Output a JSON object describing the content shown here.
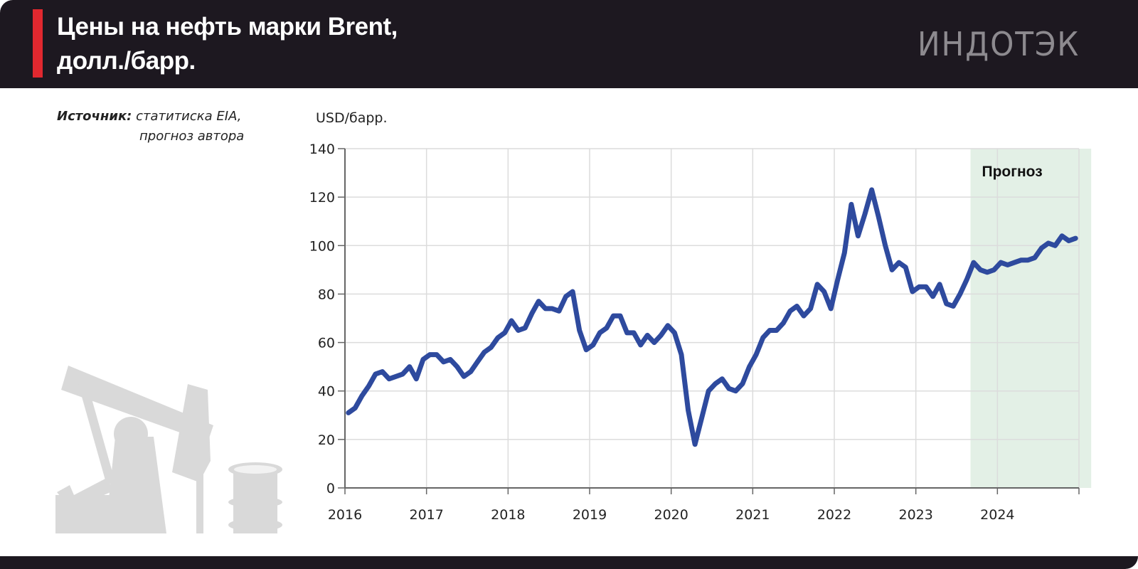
{
  "header": {
    "title_line1": "Цены на нефть марки Brent,",
    "title_line2": "долл./барр.",
    "logo_text": "ИНДОТЭК",
    "accent_color": "#e1282f",
    "background_color": "#1d1820"
  },
  "source": {
    "label": "Источник:",
    "line1": "статитиска EIA,",
    "line2": "прогноз автора"
  },
  "illustration": {
    "icons": [
      "oil-pump-icon",
      "oil-barrel-icon"
    ],
    "color": "#d9d9d9"
  },
  "chart_data": {
    "type": "line",
    "title": "Цены на нефть марки Brent, долл./барр.",
    "ylabel": "USD/барр.",
    "xlabel": "",
    "ylim": [
      0,
      140
    ],
    "xlim": [
      2016,
      2025
    ],
    "y_ticks": [
      0,
      20,
      40,
      60,
      80,
      100,
      120,
      140
    ],
    "x_ticks": [
      "2016",
      "2017",
      "2018",
      "2019",
      "2020",
      "2021",
      "2022",
      "2023",
      "2024"
    ],
    "grid": true,
    "line_color": "#2e4a9e",
    "forecast": {
      "label": "Прогноз",
      "start": 2023.67,
      "end": 2025.15,
      "color": "#e3f0e6"
    },
    "x_start_year": 2016,
    "x_step_months": 1,
    "series": [
      {
        "name": "Brent",
        "values": [
          31,
          33,
          38,
          42,
          47,
          48,
          45,
          46,
          47,
          50,
          45,
          53,
          55,
          55,
          52,
          53,
          50,
          46,
          48,
          52,
          56,
          58,
          62,
          64,
          69,
          65,
          66,
          72,
          77,
          74,
          74,
          73,
          79,
          81,
          65,
          57,
          59,
          64,
          66,
          71,
          71,
          64,
          64,
          59,
          63,
          60,
          63,
          67,
          64,
          55,
          32,
          18,
          29,
          40,
          43,
          45,
          41,
          40,
          43,
          50,
          55,
          62,
          65,
          65,
          68,
          73,
          75,
          71,
          74,
          84,
          81,
          74,
          86,
          97,
          117,
          104,
          113,
          123,
          112,
          100,
          90,
          93,
          91,
          81,
          83,
          83,
          79,
          84,
          76,
          75,
          80,
          86,
          93,
          90,
          89,
          90,
          93,
          92,
          93,
          94,
          94,
          95,
          99,
          101,
          100,
          104,
          102,
          103
        ]
      }
    ]
  }
}
